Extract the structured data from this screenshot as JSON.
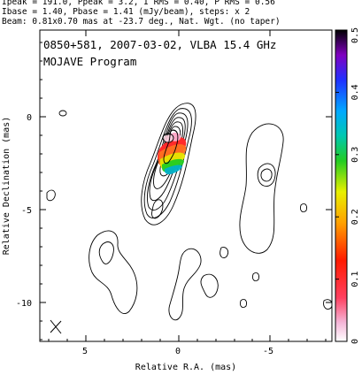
{
  "header": {
    "line1": "Ipeak = 191.0, Ppeak = 3.2, I RMS = 0.40, P RMS = 0.56",
    "line2": "Ibase = 1.40, Pbase = 1.41 (mJy/beam), steps: x 2",
    "line3": "Beam: 0.81x0.70 mas at -23.7 deg., Nat. Wgt. (no taper)"
  },
  "plot": {
    "title_line1": "0850+581, 2007-03-02, VLBA 15.4 GHz",
    "title_line2": "MOJAVE Program",
    "xlabel": "Relative R.A. (mas)",
    "ylabel": "Relative Declination (mas)",
    "x_ticks": [
      "5",
      "0",
      "-5"
    ],
    "y_ticks": [
      "0",
      "-5",
      "-10"
    ],
    "colorbar_ticks": [
      "0",
      "0.1",
      "0.2",
      "0.3",
      "0.4",
      "0.5"
    ],
    "colorbar_range": [
      0,
      0.5
    ],
    "beam_symbol": "beam-cross",
    "colors": {
      "frame": "#000000",
      "contour": "#000000"
    }
  }
}
